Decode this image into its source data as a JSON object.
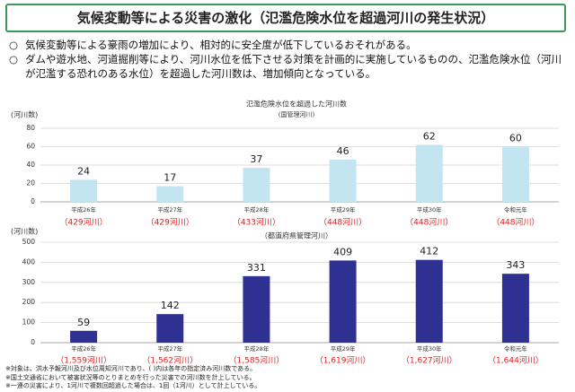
{
  "header": {
    "title": "気候変動等による災害の激化（氾濫危険水位を超過河川の発生状況）"
  },
  "bullets": [
    {
      "marker": "○",
      "text": "気候変動等による豪雨の増加により、相対的に安全度が低下しているおそれがある。"
    },
    {
      "marker": "○",
      "text": "ダムや遊水地、河道掘削等により、河川水位を低下させる対策を計画的に実施しているものの、氾濫危険水位（河川が氾濫する恐れのある水位）を超過した河川数は、増加傾向となっている。"
    }
  ],
  "chart_data": [
    {
      "type": "bar",
      "title": "氾濫危険水位を超過した河川数",
      "subtitle": "(国管理河川)",
      "y_label": "(河川数)",
      "categories": [
        "平成26年",
        "平成27年",
        "平成28年",
        "平成29年",
        "平成30年",
        "令和元年"
      ],
      "values": [
        24,
        17,
        37,
        46,
        62,
        60
      ],
      "color": "#c3e4f1",
      "totals": [
        "（429河川）",
        "（429河川）",
        "（433河川）",
        "（448河川）",
        "（448河川）",
        "（448河川）"
      ],
      "ylim": [
        0,
        80
      ],
      "yticks": [
        0,
        20,
        40,
        60,
        80
      ],
      "grid": true
    },
    {
      "type": "bar",
      "title": "（都道府県管理河川）",
      "y_label": "(河川数)",
      "categories": [
        "平成26年",
        "平成27年",
        "平成28年",
        "平成29年",
        "平成30年",
        "令和元年"
      ],
      "values": [
        59,
        142,
        331,
        409,
        412,
        343
      ],
      "color": "#2e3192",
      "totals": [
        "（1,559河川）",
        "（1,562河川）",
        "（1,585河川）",
        "（1,619河川）",
        "（1,627河川）",
        "（1,644河川）"
      ],
      "ylim": [
        0,
        500
      ],
      "yticks": [
        0,
        100,
        200,
        300,
        400,
        500
      ],
      "grid": true
    }
  ],
  "notes": [
    "※対象は、洪水予報河川及び水位周知河川であり、( )内は各年の指定済み河川数である。",
    "※国土交通省において被害状況等のとりまとめを行った災害での河川数を計上している。",
    "※一連の災害により、1河川で複数回超過した場合は、1回（1河川）として計上している。"
  ]
}
